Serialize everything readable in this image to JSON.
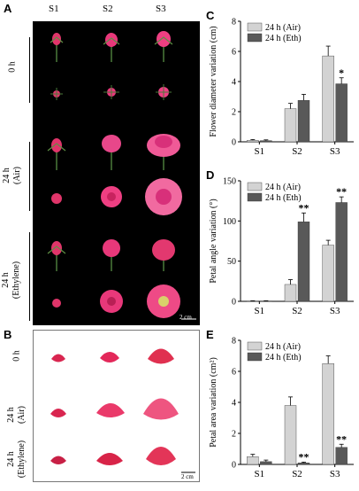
{
  "panel_a": {
    "letter": "A",
    "stages": [
      "S1",
      "S2",
      "S3"
    ],
    "row_groups": [
      {
        "line1": "0 h",
        "line2": ""
      },
      {
        "line1": "24 h",
        "line2": "(Air)"
      },
      {
        "line1": "24 h",
        "line2": "(Ethylene)"
      }
    ],
    "scale_bar": "2 cm"
  },
  "panel_b": {
    "letter": "B",
    "row_groups": [
      {
        "line1": "0 h",
        "line2": ""
      },
      {
        "line1": "24 h",
        "line2": "(Air)"
      },
      {
        "line1": "24 h",
        "line2": "(Ethylene)"
      }
    ],
    "scale_bar": "2 cm"
  },
  "colors": {
    "air_bar": "#d3d3d3",
    "eth_bar": "#595959",
    "photo_bg": "#000000",
    "petal": "#d9264f"
  },
  "chart_data": [
    {
      "panel": "C",
      "type": "bar",
      "ylabel": "Flower diameter variation (cm)",
      "categories": [
        "S1",
        "S2",
        "S3"
      ],
      "ylim": [
        0,
        8
      ],
      "yticks": [
        "0",
        "2",
        "4",
        "6",
        "8"
      ],
      "series": [
        {
          "name": "24 h (Air)",
          "values": [
            0.1,
            2.2,
            5.7
          ],
          "errors": [
            0.05,
            0.35,
            0.65
          ]
        },
        {
          "name": "24 h (Eth)",
          "values": [
            0.08,
            2.75,
            3.85
          ],
          "errors": [
            0.05,
            0.4,
            0.4
          ]
        }
      ],
      "sig": [
        {
          "series": 1,
          "index": 2,
          "label": "*"
        }
      ],
      "legend": "top-left"
    },
    {
      "panel": "D",
      "type": "bar",
      "ylabel": "Petal angle variation (°)",
      "categories": [
        "S1",
        "S2",
        "S3"
      ],
      "ylim": [
        0,
        150
      ],
      "yticks": [
        "0",
        "50",
        "100",
        "150"
      ],
      "series": [
        {
          "name": "24 h (Air)",
          "values": [
            0.5,
            21,
            70
          ],
          "errors": [
            0.3,
            6,
            6
          ]
        },
        {
          "name": "24 h (Eth)",
          "values": [
            0.5,
            99,
            123
          ],
          "errors": [
            0.3,
            11,
            7
          ]
        }
      ],
      "sig": [
        {
          "series": 1,
          "index": 1,
          "label": "**"
        },
        {
          "series": 1,
          "index": 2,
          "label": "**"
        }
      ],
      "legend": "top-left"
    },
    {
      "panel": "E",
      "type": "bar",
      "ylabel": "Petal area variation (cm²)",
      "categories": [
        "S1",
        "S2",
        "S3"
      ],
      "ylim": [
        0,
        8
      ],
      "yticks": [
        "0",
        "2",
        "4",
        "6",
        "8"
      ],
      "series": [
        {
          "name": "24 h (Air)",
          "values": [
            0.5,
            3.8,
            6.5
          ],
          "errors": [
            0.15,
            0.55,
            0.5
          ]
        },
        {
          "name": "24 h (Eth)",
          "values": [
            0.18,
            0.1,
            1.1
          ],
          "errors": [
            0.1,
            0.05,
            0.2
          ]
        }
      ],
      "sig": [
        {
          "series": 1,
          "index": 1,
          "label": "**"
        },
        {
          "series": 1,
          "index": 2,
          "label": "**"
        }
      ],
      "legend": "top-left"
    }
  ]
}
